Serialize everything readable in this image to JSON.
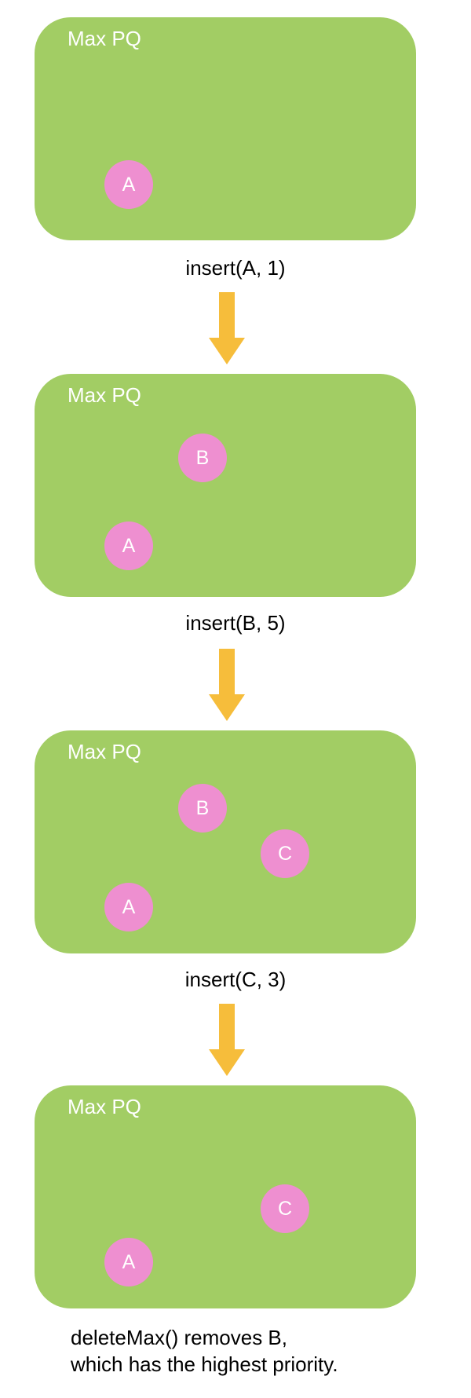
{
  "colors": {
    "box": "#a2cd64",
    "node": "#ee8fd0",
    "arrow": "#f6bd3b",
    "text": "#000000",
    "box_text": "#ffffff"
  },
  "steps": [
    {
      "title": "Max PQ",
      "nodes": [
        "A"
      ],
      "operation": "insert(A, 1)"
    },
    {
      "title": "Max PQ",
      "nodes": [
        "B",
        "A"
      ],
      "operation": "insert(B, 5)"
    },
    {
      "title": "Max PQ",
      "nodes": [
        "B",
        "C",
        "A"
      ],
      "operation": "insert(C, 3)"
    },
    {
      "title": "Max PQ",
      "nodes": [
        "C",
        "A"
      ]
    }
  ],
  "final_note": {
    "line1": "deleteMax() removes B,",
    "line2": "which has the highest priority."
  }
}
